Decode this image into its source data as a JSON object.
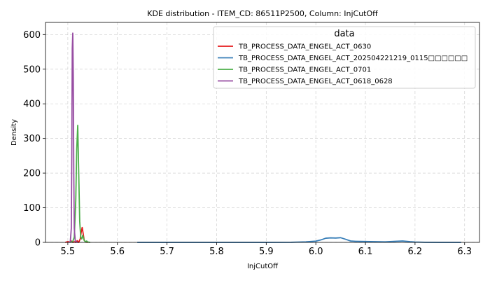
{
  "chart_data": {
    "type": "line",
    "title": "KDE distribution - ITEM_CD: 86511P2500, Column: InjCutOff",
    "xlabel": "InjCutOff",
    "ylabel": "Density",
    "xlim": [
      5.455,
      6.33
    ],
    "ylim": [
      0,
      635
    ],
    "x_ticks": [
      5.5,
      5.6,
      5.7,
      5.8,
      5.9,
      6.0,
      6.1,
      6.2,
      6.3
    ],
    "y_ticks": [
      0,
      100,
      200,
      300,
      400,
      500,
      600
    ],
    "grid": true,
    "legend_title": "data",
    "legend_position": "top-right",
    "series": [
      {
        "name": "TB_PROCESS_DATA_ENGEL_ACT_0630",
        "color": "#e41a1c",
        "x": [
          5.495,
          5.5,
          5.504,
          5.507,
          5.51,
          5.513,
          5.516,
          5.519,
          5.522,
          5.525,
          5.527,
          5.529,
          5.531,
          5.533,
          5.536,
          5.54
        ],
        "y": [
          0,
          2,
          1,
          4,
          0,
          2,
          0,
          5,
          0,
          10,
          30,
          43,
          25,
          6,
          1,
          0
        ]
      },
      {
        "name": "TB_PROCESS_DATA_ENGEL_ACT_202504221219_0115□□□□□□",
        "color": "#377eb8",
        "x": [
          5.64,
          5.7,
          5.8,
          5.9,
          5.95,
          5.98,
          6.0,
          6.01,
          6.02,
          6.03,
          6.04,
          6.05,
          6.06,
          6.07,
          6.08,
          6.1,
          6.12,
          6.14,
          6.16,
          6.175,
          6.19,
          6.2,
          6.22,
          6.25,
          6.293
        ],
        "y": [
          0,
          0,
          0,
          0,
          0.3,
          1.5,
          3.5,
          7,
          12,
          13,
          12.5,
          13.5,
          9,
          4,
          3,
          2.5,
          2,
          1.5,
          3,
          4,
          2,
          1,
          0.3,
          0,
          0
        ]
      },
      {
        "name": "TB_PROCESS_DATA_ENGEL_ACT_0701",
        "color": "#4daf4a",
        "x": [
          5.505,
          5.51,
          5.513,
          5.516,
          5.518,
          5.52,
          5.522,
          5.524,
          5.526,
          5.528,
          5.53,
          5.533,
          5.536,
          5.538,
          5.54,
          5.545
        ],
        "y": [
          0,
          3,
          15,
          120,
          270,
          338,
          200,
          60,
          15,
          10,
          20,
          6,
          1,
          4,
          1,
          0
        ]
      },
      {
        "name": "TB_PROCESS_DATA_ENGEL_ACT_0618_0628",
        "color": "#984ea3",
        "x": [
          5.502,
          5.505,
          5.507,
          5.508,
          5.509,
          5.51,
          5.511,
          5.512,
          5.513,
          5.515,
          5.517,
          5.52
        ],
        "y": [
          0,
          2,
          40,
          250,
          560,
          604,
          480,
          200,
          40,
          5,
          1,
          0
        ]
      }
    ]
  }
}
